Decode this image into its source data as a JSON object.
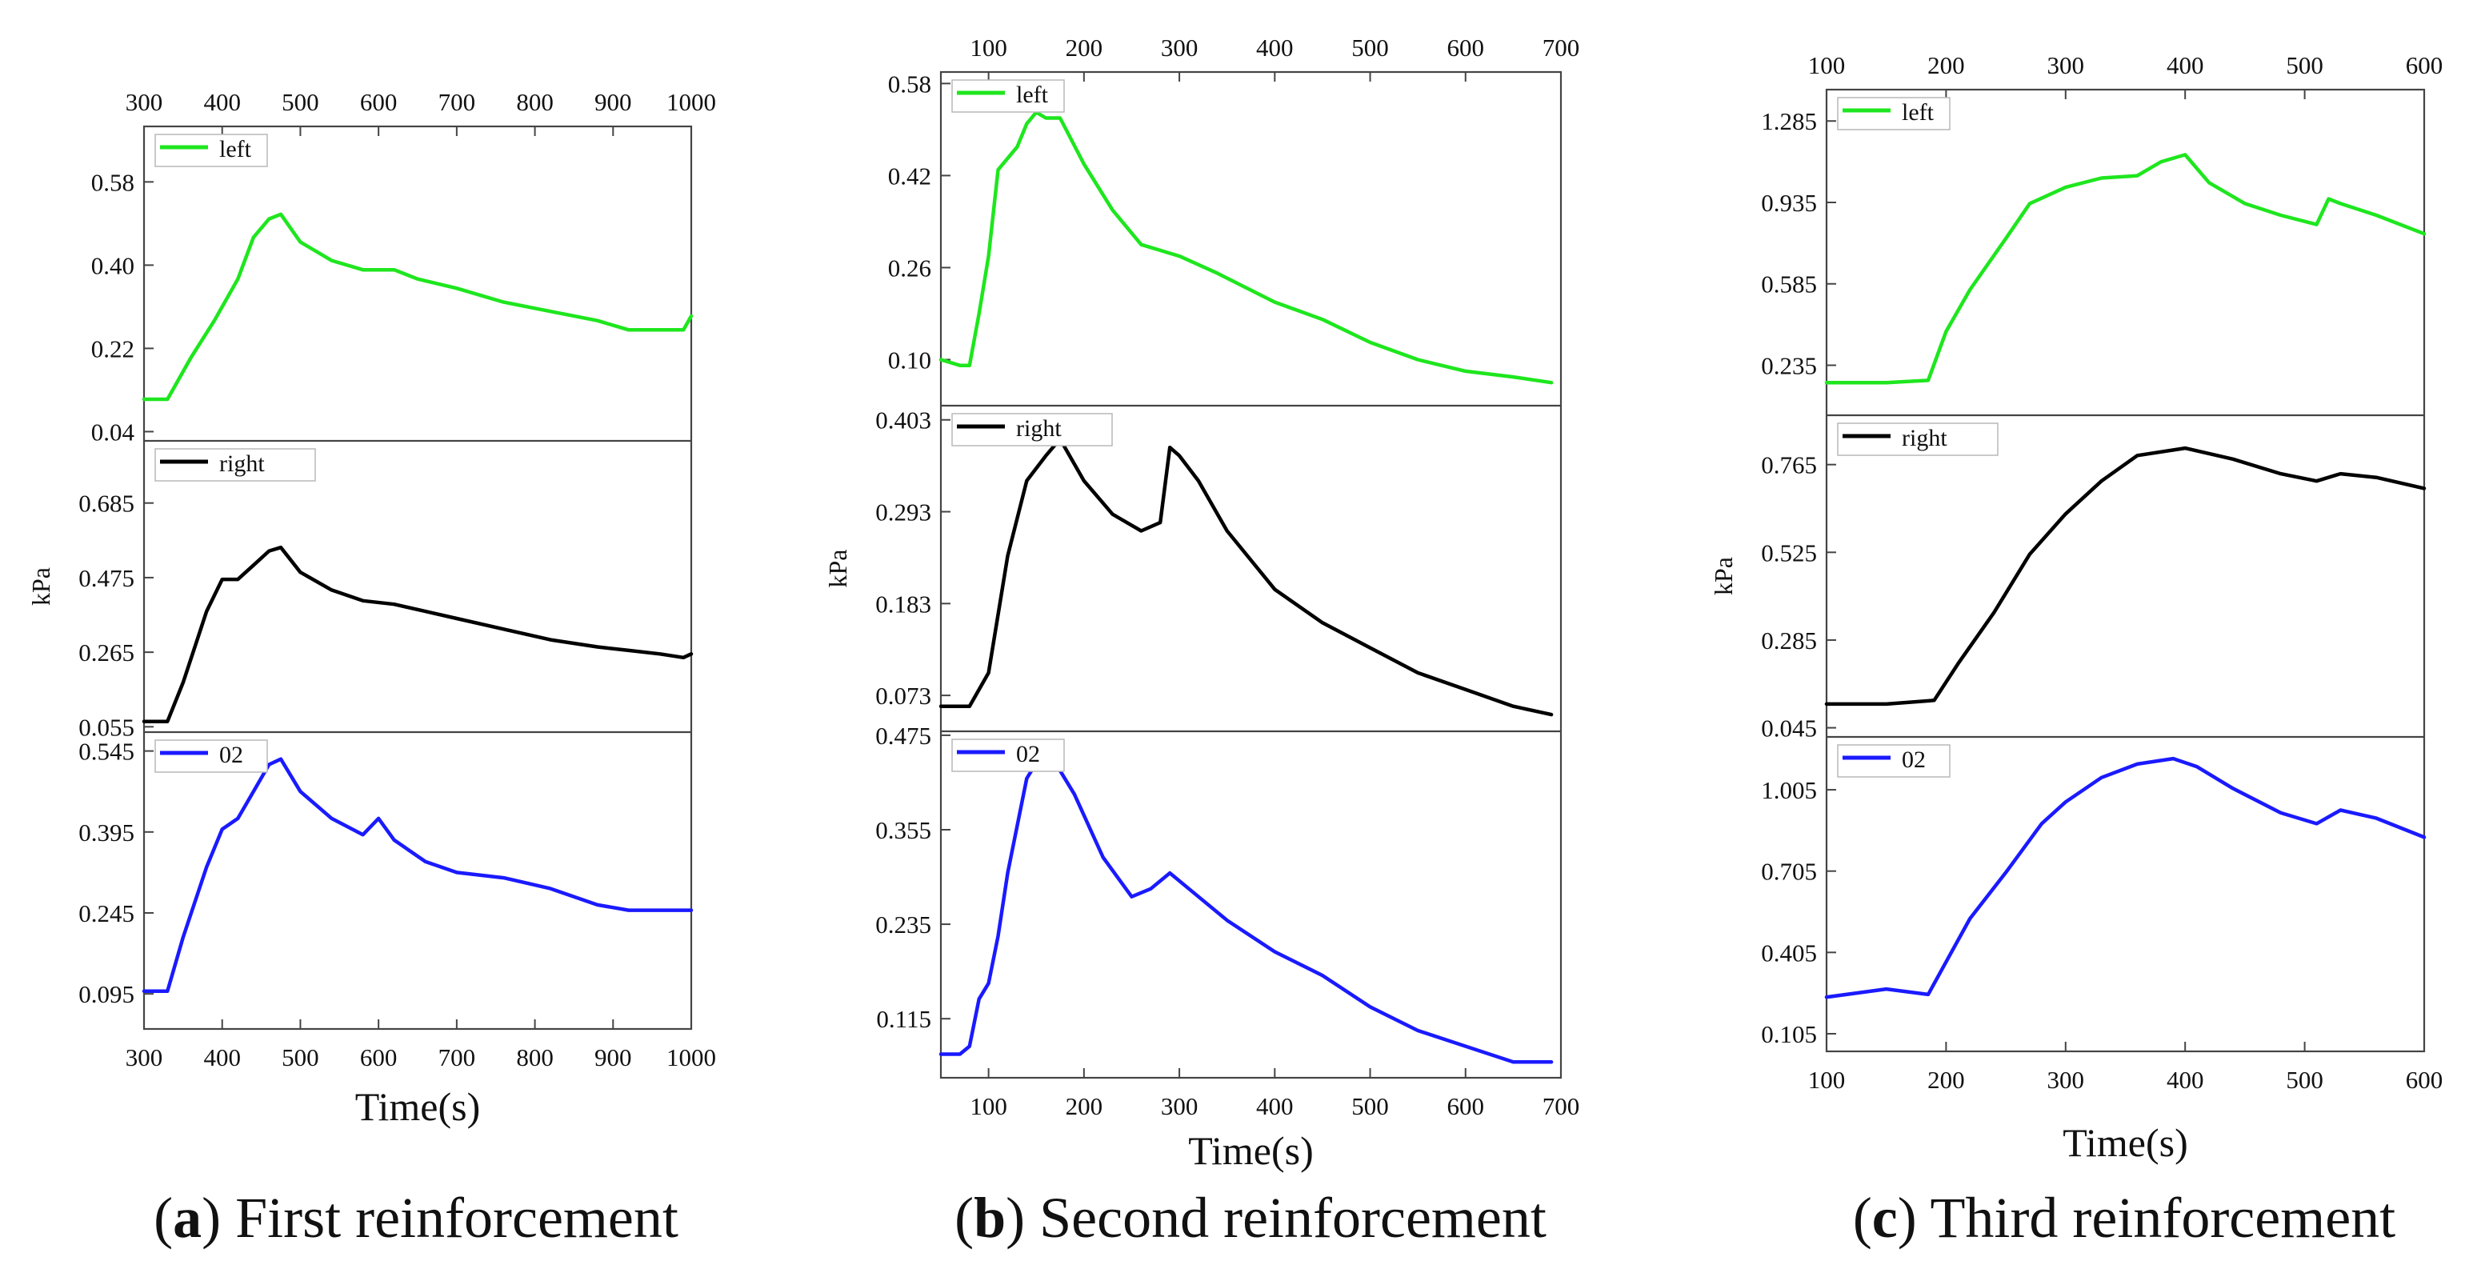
{
  "chart_data": [
    {
      "type": "line",
      "caption": {
        "letter": "a",
        "text": "First reinforcement"
      },
      "xlabel": "Time(s)",
      "ylabel": "kPa",
      "xlim": [
        300,
        1000
      ],
      "xticks": [
        300,
        400,
        500,
        600,
        700,
        800,
        900,
        1000
      ],
      "panels": [
        {
          "name": "left",
          "color": "#1ee61e",
          "ylim": [
            0.02,
            0.7
          ],
          "yticks": [
            0.04,
            0.22,
            0.4,
            0.58
          ],
          "ytick_labels": [
            "0.04",
            "0.22",
            "0.40",
            "0.58"
          ],
          "x": [
            300,
            320,
            330,
            360,
            390,
            420,
            440,
            460,
            475,
            500,
            540,
            580,
            620,
            650,
            700,
            760,
            820,
            880,
            920,
            960,
            990,
            1000
          ],
          "y": [
            0.11,
            0.11,
            0.11,
            0.2,
            0.28,
            0.37,
            0.46,
            0.5,
            0.51,
            0.45,
            0.41,
            0.39,
            0.39,
            0.37,
            0.35,
            0.32,
            0.3,
            0.28,
            0.26,
            0.26,
            0.26,
            0.29
          ]
        },
        {
          "name": "right",
          "color": "#000000",
          "ylim": [
            0.04,
            0.86
          ],
          "yticks": [
            0.055,
            0.265,
            0.475,
            0.685
          ],
          "ytick_labels": [
            "0.055",
            "0.265",
            "0.475",
            "0.685"
          ],
          "x": [
            300,
            330,
            350,
            380,
            400,
            420,
            440,
            460,
            475,
            500,
            540,
            580,
            620,
            660,
            700,
            760,
            820,
            880,
            920,
            960,
            990,
            1000
          ],
          "y": [
            0.07,
            0.07,
            0.18,
            0.38,
            0.47,
            0.47,
            0.51,
            0.55,
            0.56,
            0.49,
            0.44,
            0.41,
            0.4,
            0.38,
            0.36,
            0.33,
            0.3,
            0.28,
            0.27,
            0.26,
            0.25,
            0.26
          ]
        },
        {
          "name": "02",
          "color": "#1a1aff",
          "ylim": [
            0.03,
            0.58
          ],
          "yticks": [
            0.095,
            0.245,
            0.395,
            0.545
          ],
          "ytick_labels": [
            "0.095",
            "0.245",
            "0.395",
            "0.545"
          ],
          "x": [
            300,
            330,
            350,
            380,
            400,
            420,
            440,
            460,
            475,
            500,
            540,
            580,
            600,
            620,
            660,
            700,
            760,
            820,
            880,
            920,
            960,
            1000
          ],
          "y": [
            0.1,
            0.1,
            0.2,
            0.33,
            0.4,
            0.42,
            0.47,
            0.52,
            0.53,
            0.47,
            0.42,
            0.39,
            0.42,
            0.38,
            0.34,
            0.32,
            0.31,
            0.29,
            0.26,
            0.25,
            0.25,
            0.25
          ]
        }
      ]
    },
    {
      "type": "line",
      "caption": {
        "letter": "b",
        "text": "Second reinforcement"
      },
      "xlabel": "Time(s)",
      "ylabel": "kPa",
      "xlim": [
        50,
        700
      ],
      "xticks": [
        100,
        200,
        300,
        400,
        500,
        600,
        700
      ],
      "panels": [
        {
          "name": "left",
          "color": "#1ee61e",
          "ylim": [
            0.02,
            0.6
          ],
          "yticks": [
            0.1,
            0.26,
            0.42,
            0.58
          ],
          "ytick_labels": [
            "0.10",
            "0.26",
            "0.42",
            "0.58"
          ],
          "x": [
            50,
            70,
            80,
            90,
            100,
            110,
            120,
            130,
            140,
            150,
            160,
            175,
            200,
            230,
            260,
            280,
            300,
            340,
            400,
            450,
            500,
            550,
            600,
            650,
            690
          ],
          "y": [
            0.1,
            0.09,
            0.09,
            0.18,
            0.28,
            0.43,
            0.45,
            0.47,
            0.51,
            0.53,
            0.52,
            0.52,
            0.44,
            0.36,
            0.3,
            0.29,
            0.28,
            0.25,
            0.2,
            0.17,
            0.13,
            0.1,
            0.08,
            0.07,
            0.06
          ]
        },
        {
          "name": "right",
          "color": "#000000",
          "ylim": [
            0.03,
            0.42
          ],
          "yticks": [
            0.073,
            0.183,
            0.293,
            0.403
          ],
          "ytick_labels": [
            "0.073",
            "0.183",
            "0.293",
            "0.403"
          ],
          "x": [
            50,
            80,
            100,
            120,
            140,
            160,
            175,
            200,
            230,
            260,
            280,
            290,
            300,
            320,
            350,
            400,
            450,
            500,
            550,
            600,
            650,
            690
          ],
          "y": [
            0.06,
            0.06,
            0.1,
            0.24,
            0.33,
            0.36,
            0.38,
            0.33,
            0.29,
            0.27,
            0.28,
            0.37,
            0.36,
            0.33,
            0.27,
            0.2,
            0.16,
            0.13,
            0.1,
            0.08,
            0.06,
            0.05
          ]
        },
        {
          "name": "02",
          "color": "#1a1aff",
          "ylim": [
            0.04,
            0.48
          ],
          "yticks": [
            0.115,
            0.235,
            0.355,
            0.475
          ],
          "ytick_labels": [
            "0.115",
            "0.235",
            "0.355",
            "0.475"
          ],
          "x": [
            50,
            70,
            80,
            90,
            100,
            110,
            120,
            140,
            150,
            170,
            190,
            220,
            250,
            270,
            290,
            310,
            350,
            400,
            450,
            500,
            550,
            600,
            650,
            690
          ],
          "y": [
            0.07,
            0.07,
            0.08,
            0.14,
            0.16,
            0.22,
            0.3,
            0.42,
            0.44,
            0.44,
            0.4,
            0.32,
            0.27,
            0.28,
            0.3,
            0.28,
            0.24,
            0.2,
            0.17,
            0.13,
            0.1,
            0.08,
            0.06,
            0.06
          ]
        }
      ]
    },
    {
      "type": "line",
      "caption": {
        "letter": "c",
        "text": "Third reinforcement"
      },
      "xlabel": "Time(s)",
      "ylabel": "kPa",
      "xlim": [
        100,
        600
      ],
      "xticks": [
        100,
        200,
        300,
        400,
        500,
        600
      ],
      "panels": [
        {
          "name": "left",
          "color": "#1ee61e",
          "ylim": [
            0.02,
            1.42
          ],
          "yticks": [
            0.235,
            0.585,
            0.935,
            1.285
          ],
          "ytick_labels": [
            "0.235",
            "0.585",
            "0.935",
            "1.285"
          ],
          "x": [
            100,
            150,
            185,
            200,
            220,
            250,
            270,
            300,
            330,
            360,
            380,
            400,
            420,
            450,
            480,
            510,
            520,
            530,
            560,
            600
          ],
          "y": [
            0.16,
            0.16,
            0.17,
            0.38,
            0.56,
            0.78,
            0.93,
            1.0,
            1.04,
            1.05,
            1.11,
            1.14,
            1.02,
            0.93,
            0.88,
            0.84,
            0.95,
            0.93,
            0.88,
            0.8
          ]
        },
        {
          "name": "right",
          "color": "#000000",
          "ylim": [
            0.02,
            0.9
          ],
          "yticks": [
            0.045,
            0.285,
            0.525,
            0.765
          ],
          "ytick_labels": [
            "0.045",
            "0.285",
            "0.525",
            "0.765"
          ],
          "x": [
            100,
            150,
            190,
            210,
            240,
            270,
            300,
            330,
            360,
            400,
            440,
            480,
            510,
            530,
            560,
            600
          ],
          "y": [
            0.11,
            0.11,
            0.12,
            0.22,
            0.36,
            0.52,
            0.63,
            0.72,
            0.79,
            0.81,
            0.78,
            0.74,
            0.72,
            0.74,
            0.73,
            0.7
          ]
        },
        {
          "name": "02",
          "color": "#1a1aff",
          "ylim": [
            0.04,
            1.2
          ],
          "yticks": [
            0.105,
            0.405,
            0.705,
            1.005
          ],
          "ytick_labels": [
            "0.105",
            "0.405",
            "0.705",
            "1.005"
          ],
          "x": [
            100,
            150,
            185,
            200,
            220,
            250,
            280,
            300,
            330,
            360,
            390,
            410,
            440,
            480,
            510,
            530,
            560,
            600
          ],
          "y": [
            0.24,
            0.27,
            0.25,
            0.37,
            0.53,
            0.7,
            0.88,
            0.96,
            1.05,
            1.1,
            1.12,
            1.09,
            1.01,
            0.92,
            0.88,
            0.93,
            0.9,
            0.83
          ]
        }
      ]
    }
  ]
}
